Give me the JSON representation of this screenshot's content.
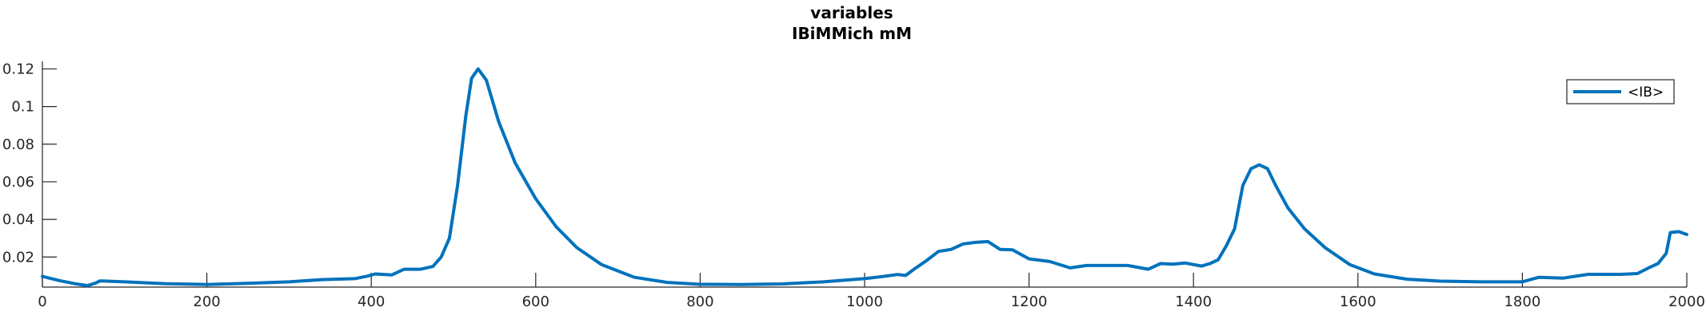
{
  "chart_data": {
    "type": "line",
    "title": "variables",
    "subtitle": "IBiMMich mM",
    "xlabel": "",
    "ylabel": "",
    "xlim": [
      0,
      2000
    ],
    "ylim": [
      0.004,
      0.124
    ],
    "xticks": [
      "0",
      "200",
      "400",
      "600",
      "800",
      "1000",
      "1200",
      "1400",
      "1600",
      "1800",
      "2000"
    ],
    "yticks": [
      "0.02",
      "0.04",
      "0.06",
      "0.08",
      "0.1",
      "0.12"
    ],
    "grid": false,
    "legend_position": "top-right",
    "colors": {
      "series": "#0072BD",
      "axis": "#262626"
    },
    "series": [
      {
        "name": "<IB>",
        "x": [
          0,
          20,
          40,
          55,
          65,
          70,
          100,
          150,
          200,
          250,
          300,
          340,
          380,
          395,
          405,
          425,
          440,
          460,
          475,
          485,
          495,
          505,
          515,
          522,
          530,
          540,
          555,
          575,
          600,
          625,
          650,
          680,
          720,
          760,
          800,
          850,
          900,
          950,
          1000,
          1020,
          1040,
          1050,
          1060,
          1075,
          1090,
          1105,
          1120,
          1135,
          1150,
          1165,
          1180,
          1200,
          1225,
          1250,
          1270,
          1295,
          1320,
          1345,
          1360,
          1375,
          1390,
          1410,
          1420,
          1430,
          1440,
          1450,
          1460,
          1470,
          1480,
          1490,
          1500,
          1515,
          1535,
          1560,
          1590,
          1620,
          1660,
          1700,
          1750,
          1800,
          1820,
          1850,
          1880,
          1900,
          1920,
          1940,
          1955,
          1965,
          1975,
          1980,
          1990,
          2000
        ],
        "y": [
          0.0097,
          0.0075,
          0.0058,
          0.0048,
          0.0062,
          0.0073,
          0.0068,
          0.0058,
          0.0054,
          0.006,
          0.0068,
          0.008,
          0.0085,
          0.0098,
          0.011,
          0.0105,
          0.0135,
          0.0135,
          0.015,
          0.02,
          0.03,
          0.058,
          0.095,
          0.115,
          0.12,
          0.114,
          0.092,
          0.07,
          0.051,
          0.036,
          0.025,
          0.016,
          0.0092,
          0.0065,
          0.0055,
          0.0054,
          0.0057,
          0.0068,
          0.0085,
          0.0095,
          0.0107,
          0.0102,
          0.0135,
          0.018,
          0.023,
          0.024,
          0.027,
          0.0278,
          0.0282,
          0.024,
          0.0238,
          0.019,
          0.0176,
          0.0142,
          0.0155,
          0.0155,
          0.0155,
          0.0135,
          0.0165,
          0.0162,
          0.0168,
          0.0152,
          0.0165,
          0.0185,
          0.026,
          0.035,
          0.058,
          0.067,
          0.069,
          0.067,
          0.058,
          0.046,
          0.035,
          0.025,
          0.016,
          0.011,
          0.0082,
          0.0072,
          0.0068,
          0.0068,
          0.0092,
          0.0088,
          0.0108,
          0.0108,
          0.0108,
          0.0112,
          0.0145,
          0.0165,
          0.022,
          0.033,
          0.0335,
          0.032
        ]
      }
    ]
  }
}
